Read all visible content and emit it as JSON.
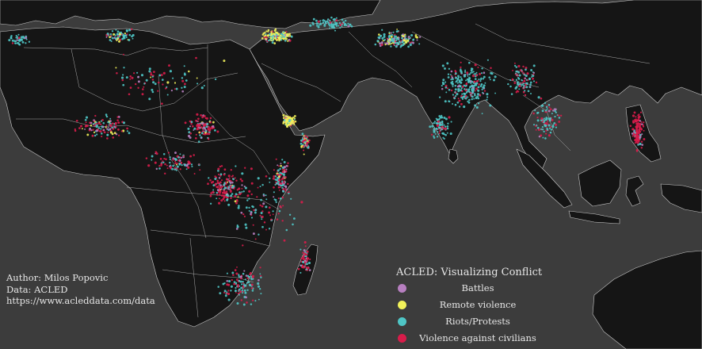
{
  "credits": {
    "author": "Author: Milos Popovic",
    "data": "Data: ACLED",
    "url": "https://www.acleddata.com/data"
  },
  "legend": {
    "title": "ACLED: Visualizing Conflict",
    "items": [
      {
        "key": "battles",
        "label": "Battles",
        "color": "#b77fc0"
      },
      {
        "key": "remote",
        "label": "Remote violence",
        "color": "#f2f25a"
      },
      {
        "key": "riots",
        "label": "Riots/Protests",
        "color": "#4fc6c6"
      },
      {
        "key": "civilians",
        "label": "Violence against civilians",
        "color": "#d81c4a"
      }
    ]
  },
  "colors": {
    "background": "#3c3c3c",
    "land": "#151515",
    "borders": "#c9c9c9"
  }
}
